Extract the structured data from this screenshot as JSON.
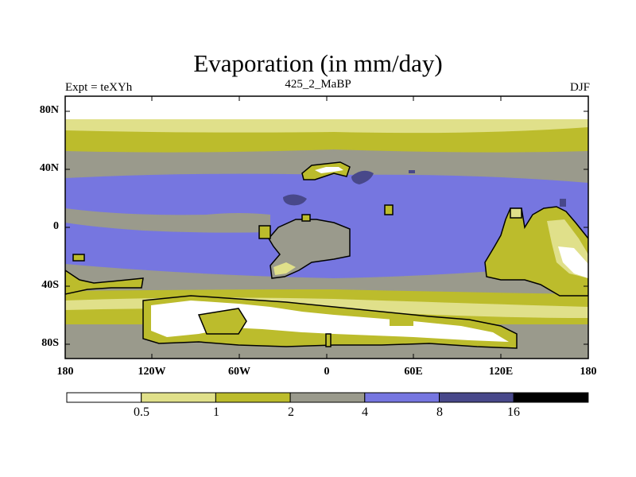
{
  "title": "Evaporation (in mm/day)",
  "subtitle_left": "Expt = teXYh",
  "subtitle_center": "425_2_MaBP",
  "subtitle_right": "DJF",
  "lat_labels": [
    "80N",
    "40N",
    "0",
    "40S",
    "80S"
  ],
  "lon_labels": [
    "180",
    "120W",
    "60W",
    "0",
    "60E",
    "120E",
    "180"
  ],
  "colorbar": {
    "colors": [
      "#ffffff",
      "#e0e08a",
      "#bcbc2c",
      "#9a9a8c",
      "#7676e0",
      "#48488a",
      "#000000"
    ],
    "labels": [
      "0.5",
      "1",
      "2",
      "4",
      "8",
      "16"
    ]
  },
  "palette": {
    "lt05": "#ffffff",
    "b05_1": "#e0e08a",
    "b1_2": "#bcbc2c",
    "b2_4": "#9a9a8c",
    "b4_8": "#7676e0",
    "b8_16": "#48488a",
    "gt16": "#000000",
    "coast": "#000000"
  }
}
